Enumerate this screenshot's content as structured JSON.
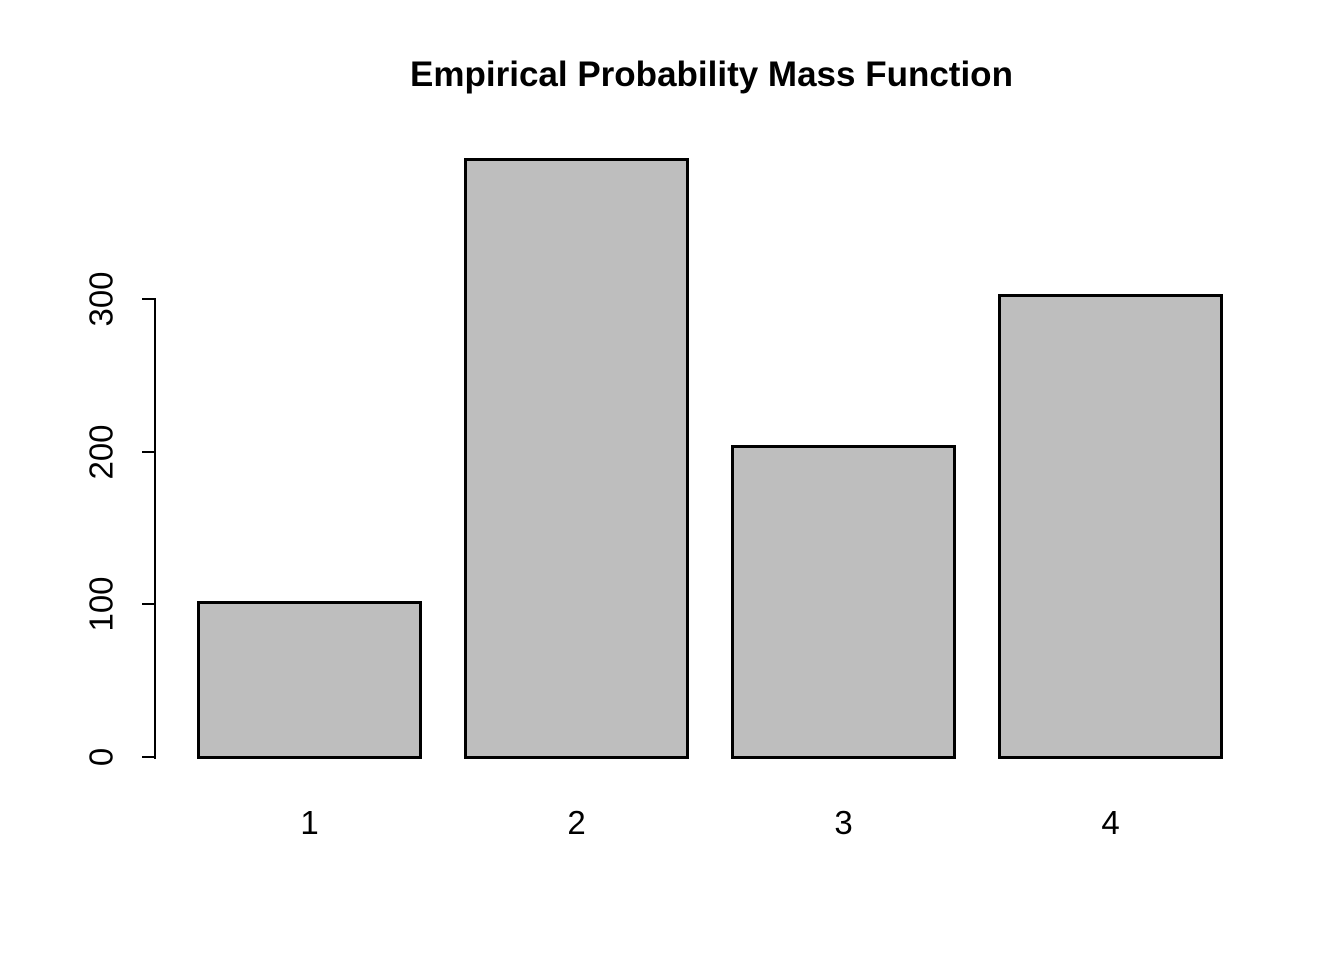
{
  "chart_data": {
    "type": "bar",
    "title": "Empirical Probability Mass Function",
    "categories": [
      "1",
      "2",
      "3",
      "4"
    ],
    "values": [
      102,
      392,
      204,
      303
    ],
    "xlabel": "",
    "ylabel": "",
    "yticks": [
      0,
      100,
      200,
      300
    ],
    "ylim": [
      0,
      400
    ],
    "grid": false,
    "legend_position": "none",
    "bar_fill_color": "#BEBEBE",
    "bar_border_color": "#000000",
    "axis_color": "#000000",
    "text_color": "#000000",
    "background_color": "#FFFFFF"
  }
}
